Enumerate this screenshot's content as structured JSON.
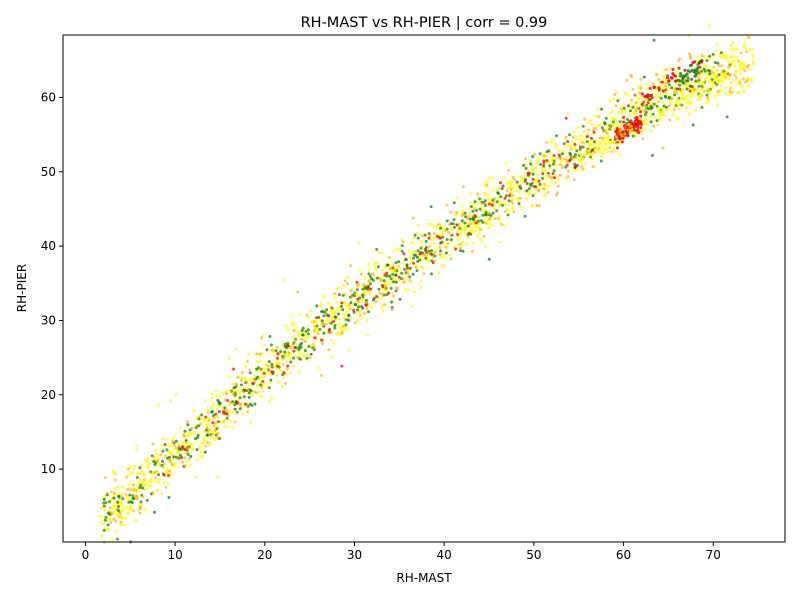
{
  "chart_data": {
    "type": "scatter",
    "title": "RH-MAST vs RH-PIER | corr = 0.99",
    "xlabel": "RH-MAST",
    "ylabel": "RH-PIER",
    "xlim": [
      -2.5,
      78
    ],
    "ylim": [
      0.2,
      68.4
    ],
    "xticks": [
      0,
      10,
      20,
      30,
      40,
      50,
      60,
      70
    ],
    "yticks": [
      10,
      20,
      30,
      40,
      50,
      60
    ],
    "grid": false,
    "legend": "none",
    "point_colors": [
      "#ffff00",
      "#008000",
      "#ffa500",
      "#ff0000"
    ],
    "trend": {
      "x": [
        2,
        5,
        10,
        15,
        20,
        25,
        30,
        35,
        40,
        45,
        50,
        55,
        60,
        65,
        70,
        74
      ],
      "y": [
        4,
        6.5,
        12,
        17.5,
        23,
        28,
        32.5,
        36.5,
        41,
        45,
        49,
        53,
        57,
        60.5,
        63.5,
        64
      ]
    },
    "series": [
      {
        "color": "#ffff00",
        "x_range": [
          1.5,
          74.5
        ],
        "y_spread": 1.8,
        "n": 1400,
        "alpha": 0.75
      },
      {
        "color": "#008000",
        "x_range": [
          2,
          72
        ],
        "y_spread": 1.5,
        "n": 550,
        "alpha": 0.7
      },
      {
        "color": "#ffa500",
        "x_range": [
          2,
          74
        ],
        "y_spread": 1.9,
        "n": 450,
        "alpha": 0.6
      },
      {
        "color": "#ff0000",
        "x_range": [
          8,
          68
        ],
        "y_spread": 1.2,
        "n": 120,
        "alpha": 0.75
      }
    ],
    "clusters": [
      {
        "color": "#ff0000",
        "x_range": [
          59,
          62
        ],
        "y_range": [
          54.5,
          57
        ],
        "n": 90,
        "alpha": 0.85
      },
      {
        "color": "#ff0000",
        "x_range": [
          62,
          69
        ],
        "y_range": [
          60,
          65.3
        ],
        "n": 35,
        "alpha": 0.85
      },
      {
        "color": "#008000",
        "x_range": [
          66,
          69
        ],
        "y_range": [
          62,
          64.5
        ],
        "n": 25,
        "alpha": 0.8
      },
      {
        "color": "#ffff00",
        "x_range": [
          55,
          72
        ],
        "y_range": [
          52,
          63
        ],
        "n": 90,
        "alpha": 0.75
      }
    ]
  }
}
